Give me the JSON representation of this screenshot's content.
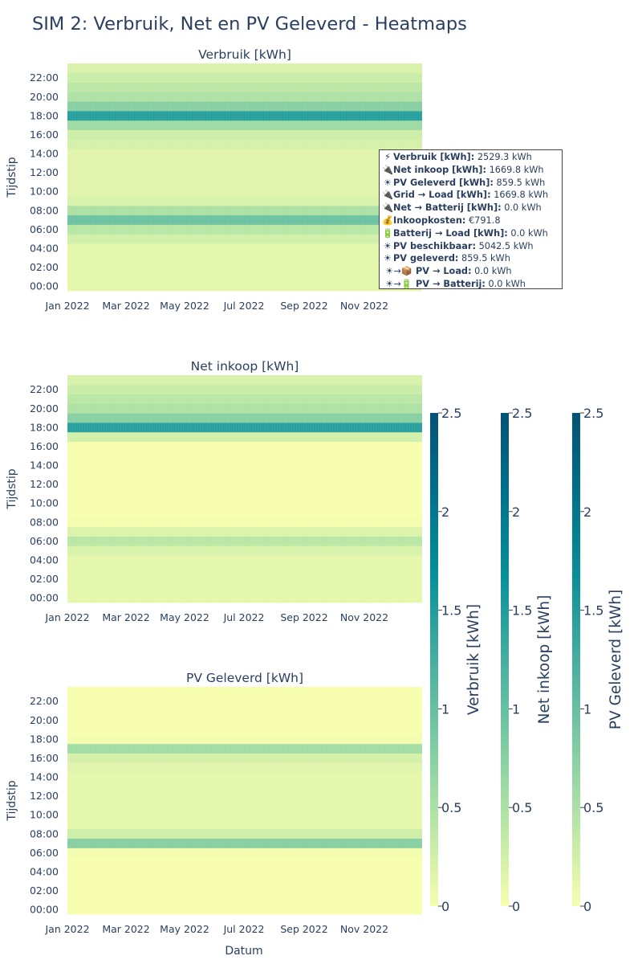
{
  "title": "SIM 2: Verbruik, Net en PV Geleverd - Heatmaps",
  "colors": {
    "colorscale": [
      "#f7feae",
      "#b7e6a5",
      "#7ccba2",
      "#46aea0",
      "#089099",
      "#00718b",
      "#045275"
    ],
    "text": "#2a3f5f"
  },
  "hover": {
    "visible": true,
    "lines": [
      {
        "icon": "lightning-icon",
        "glyph": "⚡",
        "key": "Verbruik [kWh]:",
        "value": "2529.3 kWh"
      },
      {
        "icon": "plug-icon",
        "glyph": "🔌",
        "key": "Net inkoop [kWh]:",
        "value": "1669.8 kWh"
      },
      {
        "icon": "sun-icon",
        "glyph": "☀",
        "key": "PV Geleverd [kWh]:",
        "value": "859.5 kWh"
      },
      {
        "icon": "plug-icon",
        "glyph": "🔌",
        "key": "Grid → Load [kWh]:",
        "value": "1669.8 kWh"
      },
      {
        "icon": "plug-icon",
        "glyph": "🔌",
        "key": "Net → Batterij [kWh]:",
        "value": "0.0 kWh"
      },
      {
        "icon": "money-bag-icon",
        "glyph": "💰",
        "key": "Inkoopkosten:",
        "value": "€791.8"
      },
      {
        "icon": "battery-icon",
        "glyph": "🔋",
        "key": "Batterij → Load [kWh]:",
        "value": "0.0 kWh"
      },
      {
        "icon": "sun-icon",
        "glyph": "☀",
        "key": "PV beschikbaar:",
        "value": "5042.5 kWh"
      },
      {
        "icon": "sun-icon",
        "glyph": "☀",
        "key": "PV geleverd:",
        "value": "859.5 kWh"
      },
      {
        "icon": "sun-to-package-icon",
        "glyph": "☀→📦",
        "key": "PV → Load:",
        "value": "0.0 kWh"
      },
      {
        "icon": "sun-to-battery-icon",
        "glyph": "☀→🔋",
        "key": "PV → Batterij:",
        "value": "0.0 kWh"
      }
    ]
  },
  "chart_data": [
    {
      "type": "heatmap",
      "title": "Verbruik [kWh]",
      "xlabel": "",
      "ylabel": "Tijdstip",
      "x_ticks": [
        "Jan 2022",
        "Mar 2022",
        "May 2022",
        "Jul 2022",
        "Sep 2022",
        "Nov 2022"
      ],
      "y_ticks": [
        "00:00",
        "02:00",
        "04:00",
        "06:00",
        "08:00",
        "10:00",
        "12:00",
        "14:00",
        "16:00",
        "18:00",
        "20:00",
        "22:00"
      ],
      "x_range": [
        "2022-01-01",
        "2022-12-31"
      ],
      "hours": [
        0,
        1,
        2,
        3,
        4,
        5,
        6,
        7,
        8,
        9,
        10,
        11,
        12,
        13,
        14,
        15,
        16,
        17,
        18,
        19,
        20,
        21,
        22,
        23
      ],
      "hourly_values": [
        0.12,
        0.12,
        0.12,
        0.12,
        0.12,
        0.25,
        0.42,
        0.95,
        0.5,
        0.2,
        0.15,
        0.15,
        0.15,
        0.15,
        0.15,
        0.22,
        0.28,
        0.6,
        1.45,
        0.75,
        0.48,
        0.4,
        0.3,
        0.2
      ],
      "colorbar": {
        "title": "Verbruik [kWh]",
        "range": [
          0,
          2.5
        ],
        "ticks": [
          0,
          0.5,
          1,
          1.5,
          2,
          2.5
        ]
      }
    },
    {
      "type": "heatmap",
      "title": "Net inkoop [kWh]",
      "xlabel": "",
      "ylabel": "Tijdstip",
      "x_ticks": [
        "Jan 2022",
        "Mar 2022",
        "May 2022",
        "Jul 2022",
        "Sep 2022",
        "Nov 2022"
      ],
      "y_ticks": [
        "00:00",
        "02:00",
        "04:00",
        "06:00",
        "08:00",
        "10:00",
        "12:00",
        "14:00",
        "16:00",
        "18:00",
        "20:00",
        "22:00"
      ],
      "x_range": [
        "2022-01-01",
        "2022-12-31"
      ],
      "hours": [
        0,
        1,
        2,
        3,
        4,
        5,
        6,
        7,
        8,
        9,
        10,
        11,
        12,
        13,
        14,
        15,
        16,
        17,
        18,
        19,
        20,
        21,
        22,
        23
      ],
      "hourly_values": [
        0.12,
        0.12,
        0.12,
        0.12,
        0.12,
        0.2,
        0.4,
        0.18,
        0.02,
        0.0,
        0.0,
        0.0,
        0.0,
        0.0,
        0.0,
        0.0,
        0.0,
        0.25,
        1.45,
        0.75,
        0.48,
        0.4,
        0.3,
        0.2
      ],
      "colorbar": {
        "title": "Net inkoop [kWh]",
        "range": [
          0,
          2.5
        ],
        "ticks": [
          0,
          0.5,
          1,
          1.5,
          2,
          2.5
        ]
      }
    },
    {
      "type": "heatmap",
      "title": "PV Geleverd [kWh]",
      "xlabel": "Datum",
      "ylabel": "Tijdstip",
      "x_ticks": [
        "Jan 2022",
        "Mar 2022",
        "May 2022",
        "Jul 2022",
        "Sep 2022",
        "Nov 2022"
      ],
      "y_ticks": [
        "00:00",
        "02:00",
        "04:00",
        "06:00",
        "08:00",
        "10:00",
        "12:00",
        "14:00",
        "16:00",
        "18:00",
        "20:00",
        "22:00"
      ],
      "x_range": [
        "2022-01-01",
        "2022-12-31"
      ],
      "hours": [
        0,
        1,
        2,
        3,
        4,
        5,
        6,
        7,
        8,
        9,
        10,
        11,
        12,
        13,
        14,
        15,
        16,
        17,
        18,
        19,
        20,
        21,
        22,
        23
      ],
      "hourly_values": [
        0.0,
        0.0,
        0.0,
        0.0,
        0.0,
        0.0,
        0.02,
        0.75,
        0.28,
        0.12,
        0.12,
        0.12,
        0.12,
        0.12,
        0.12,
        0.15,
        0.22,
        0.55,
        0.02,
        0.0,
        0.0,
        0.0,
        0.0,
        0.0
      ],
      "colorbar": {
        "title": "PV Geleverd [kWh]",
        "range": [
          0,
          2.5
        ],
        "ticks": [
          0,
          0.5,
          1,
          1.5,
          2,
          2.5
        ]
      }
    }
  ]
}
